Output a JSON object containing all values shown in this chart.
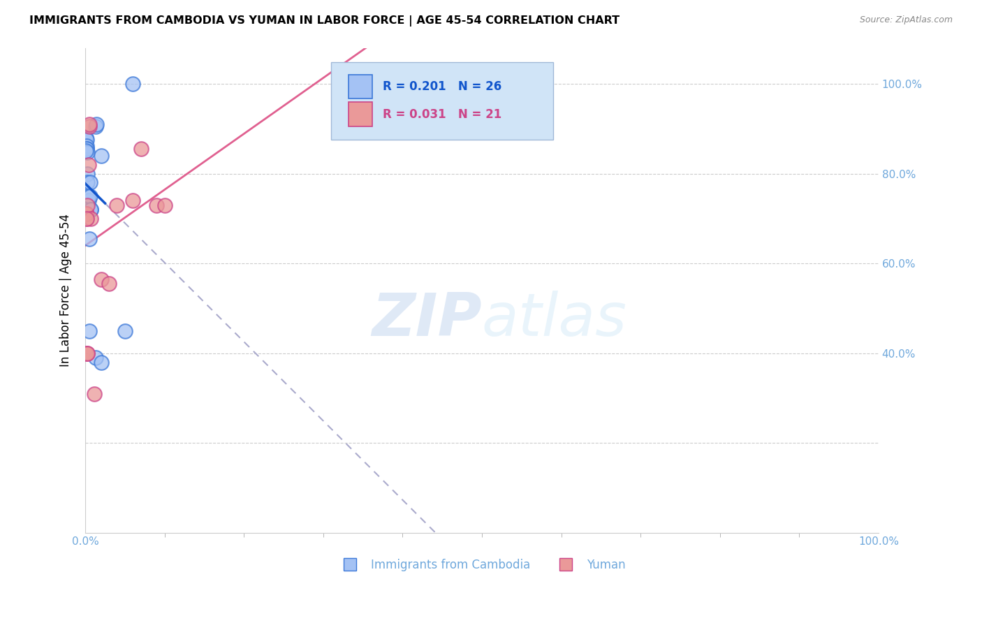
{
  "title": "IMMIGRANTS FROM CAMBODIA VS YUMAN IN LABOR FORCE | AGE 45-54 CORRELATION CHART",
  "source": "Source: ZipAtlas.com",
  "ylabel": "In Labor Force | Age 45-54",
  "cambodia_R": 0.201,
  "cambodia_N": 26,
  "yuman_R": 0.031,
  "yuman_N": 21,
  "cambodia_color": "#a4c2f4",
  "cambodia_edge_color": "#3c78d8",
  "yuman_color": "#ea9999",
  "yuman_edge_color": "#cc4488",
  "cambodia_line_color": "#1155cc",
  "yuman_line_color": "#e06090",
  "right_axis_color": "#6fa8dc",
  "legend_bg_color": "#d0e4f7",
  "legend_border_color": "#a0b8d8",
  "watermark_color": "#d6eaf8",
  "cambodia_x": [
    0.001,
    0.001,
    0.001,
    0.0015,
    0.0015,
    0.002,
    0.002,
    0.003,
    0.003,
    0.003,
    0.004,
    0.004,
    0.005,
    0.005,
    0.006,
    0.006,
    0.007,
    0.007,
    0.013,
    0.013,
    0.014,
    0.02,
    0.02,
    0.05,
    0.06,
    0.001
  ],
  "cambodia_y": [
    0.86,
    0.875,
    0.88,
    0.875,
    0.862,
    0.855,
    0.855,
    0.848,
    0.8,
    0.78,
    0.74,
    0.75,
    0.655,
    0.45,
    0.78,
    0.75,
    0.72,
    0.72,
    0.39,
    0.905,
    0.91,
    0.84,
    0.38,
    0.45,
    1.0,
    0.85
  ],
  "yuman_x": [
    0.001,
    0.001,
    0.001,
    0.002,
    0.002,
    0.003,
    0.003,
    0.003,
    0.004,
    0.005,
    0.005,
    0.007,
    0.011,
    0.02,
    0.03,
    0.04,
    0.06,
    0.07,
    0.09,
    0.1,
    0.002
  ],
  "yuman_y": [
    0.71,
    0.71,
    0.4,
    0.7,
    0.71,
    0.4,
    0.4,
    0.73,
    0.82,
    0.905,
    0.91,
    0.7,
    0.31,
    0.565,
    0.555,
    0.73,
    0.74,
    0.855,
    0.73,
    0.73,
    0.7
  ],
  "xlim": [
    0.0,
    1.0
  ],
  "ylim": [
    0.0,
    1.08
  ],
  "xticklabels_ends": [
    "0.0%",
    "100.0%"
  ],
  "yticks_right": [
    0.4,
    0.6,
    0.8,
    1.0
  ],
  "ytick_labels_right": [
    "40.0%",
    "60.0%",
    "80.0%",
    "100.0%"
  ],
  "figsize": [
    14.06,
    8.92
  ],
  "dpi": 100
}
